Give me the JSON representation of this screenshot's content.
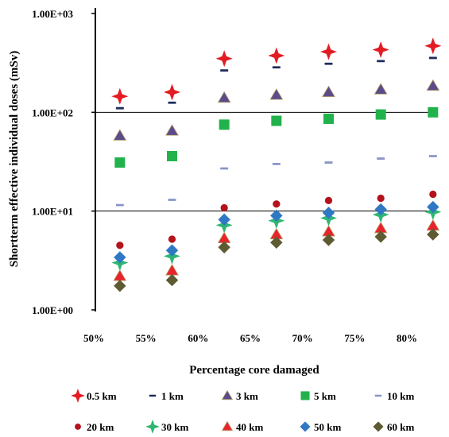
{
  "chart_data": {
    "type": "scatter",
    "title": "",
    "xlabel": "Percentage core damaged",
    "ylabel": "Shortterm effective  individual doses (mSv)",
    "x_tick_labels": [
      "50%",
      "55%",
      "60%",
      "65%",
      "70%",
      "75%",
      "80%"
    ],
    "x_ticks": [
      50,
      55,
      60,
      65,
      70,
      75,
      80
    ],
    "xlim": [
      50,
      83
    ],
    "y_scale": "log",
    "ylim": [
      1,
      1000
    ],
    "y_tick_labels": [
      "1.00E+00",
      "1.00E+01",
      "1.00E+02",
      "1.00E+03"
    ],
    "y_ticks": [
      1,
      10,
      100,
      1000
    ],
    "gridlines_y": [
      10,
      100
    ],
    "legend_position": "bottom",
    "x": [
      52.5,
      57.5,
      62.5,
      67.5,
      72.5,
      77.5,
      82.5
    ],
    "series": [
      {
        "name": "0.5 km",
        "marker": "star",
        "color": "#e31b23",
        "values": [
          145,
          160,
          350,
          375,
          410,
          430,
          470
        ]
      },
      {
        "name": "1 km",
        "marker": "dash",
        "color": "#1f2d5c",
        "values": [
          110,
          125,
          265,
          285,
          310,
          330,
          355
        ]
      },
      {
        "name": "3 km",
        "marker": "triangle",
        "color": "#5b4b8a",
        "values": [
          58,
          65,
          140,
          150,
          160,
          170,
          185
        ]
      },
      {
        "name": "5 km",
        "marker": "square",
        "color": "#22b24c",
        "values": [
          31,
          36,
          75,
          82,
          86,
          95,
          100
        ]
      },
      {
        "name": "10 km",
        "marker": "dash",
        "color": "#8a95c8",
        "values": [
          11.5,
          13,
          27,
          30,
          31,
          34,
          36
        ]
      },
      {
        "name": "20 km",
        "marker": "circle",
        "color": "#b5121b",
        "values": [
          4.5,
          5.2,
          10.8,
          11.8,
          12.8,
          13.5,
          14.8
        ]
      },
      {
        "name": "30 km",
        "marker": "star",
        "color": "#2fb673",
        "values": [
          3.0,
          3.5,
          7.2,
          8.0,
          8.5,
          9.2,
          9.8
        ]
      },
      {
        "name": "40 km",
        "marker": "triangle",
        "color": "#e8232b",
        "values": [
          2.2,
          2.5,
          5.3,
          5.8,
          6.2,
          6.7,
          7.1
        ]
      },
      {
        "name": "50 km",
        "marker": "diamond",
        "color": "#2f78c4",
        "values": [
          3.4,
          4.0,
          8.2,
          9.0,
          9.6,
          10.4,
          11.0
        ]
      },
      {
        "name": "60 km",
        "marker": "diamond",
        "color": "#5e5b33",
        "values": [
          1.75,
          2.0,
          4.3,
          4.8,
          5.1,
          5.5,
          5.8
        ]
      }
    ]
  }
}
